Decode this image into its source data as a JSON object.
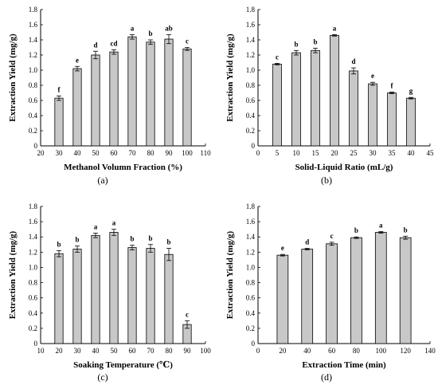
{
  "chart_data": [
    {
      "type": "bar",
      "panel_label": "(a)",
      "xlabel": "Methanol Volumn Fraction (%)",
      "ylabel": "Extraction Yield (mg/g)",
      "xlim": [
        20,
        110
      ],
      "ylim": [
        0,
        1.8
      ],
      "x_ticks": [
        20,
        30,
        40,
        50,
        60,
        70,
        80,
        90,
        100,
        110
      ],
      "y_ticks": [
        "0",
        "0.2",
        "0.4",
        "0.6",
        "0.8",
        "1.0",
        "1.2",
        "1.4",
        "1.6",
        "1.8"
      ],
      "x": [
        30,
        40,
        50,
        60,
        70,
        80,
        90,
        100
      ],
      "values": [
        0.63,
        1.02,
        1.2,
        1.24,
        1.44,
        1.37,
        1.41,
        1.28
      ],
      "errors": [
        0.03,
        0.03,
        0.05,
        0.03,
        0.03,
        0.03,
        0.06,
        0.02
      ],
      "labels": [
        "f",
        "e",
        "d",
        "cd",
        "a",
        "b",
        "ab",
        "c"
      ]
    },
    {
      "type": "bar",
      "panel_label": "(b)",
      "xlabel": "Solid-Liquid Ratio (mL/g)",
      "ylabel": "Extraction Yield (mg/g)",
      "xlim": [
        0,
        45
      ],
      "ylim": [
        0,
        1.8
      ],
      "x_ticks": [
        0,
        5,
        10,
        15,
        20,
        25,
        30,
        35,
        40,
        45
      ],
      "y_ticks": [
        "0",
        "0.2",
        "0.4",
        "0.6",
        "0.8",
        "1.0",
        "1.2",
        "1.4",
        "1.6",
        "1.8"
      ],
      "x": [
        5,
        10,
        15,
        20,
        25,
        30,
        35,
        40
      ],
      "values": [
        1.08,
        1.23,
        1.26,
        1.46,
        0.99,
        0.82,
        0.7,
        0.63
      ],
      "errors": [
        0.01,
        0.03,
        0.03,
        0.01,
        0.04,
        0.02,
        0.01,
        0.01
      ],
      "labels": [
        "c",
        "b",
        "b",
        "a",
        "d",
        "e",
        "f",
        "g"
      ]
    },
    {
      "type": "bar",
      "panel_label": "(c)",
      "xlabel": "Soaking Temperature (℃)",
      "ylabel": "Extraction Yield (mg/g)",
      "xlim": [
        10,
        100
      ],
      "ylim": [
        0,
        1.8
      ],
      "x_ticks": [
        10,
        20,
        30,
        40,
        50,
        60,
        70,
        80,
        90,
        100
      ],
      "y_ticks": [
        "0",
        "0.2",
        "0.4",
        "0.6",
        "0.8",
        "1.0",
        "1.2",
        "1.4",
        "1.6",
        "1.8"
      ],
      "x": [
        20,
        30,
        40,
        50,
        60,
        70,
        80,
        90
      ],
      "values": [
        1.18,
        1.24,
        1.42,
        1.46,
        1.26,
        1.25,
        1.17,
        0.25
      ],
      "errors": [
        0.04,
        0.04,
        0.03,
        0.04,
        0.03,
        0.05,
        0.08,
        0.05
      ],
      "labels": [
        "b",
        "b",
        "a",
        "a",
        "b",
        "b",
        "b",
        "c"
      ]
    },
    {
      "type": "bar",
      "panel_label": "(d)",
      "xlabel": "Extraction Time (min)",
      "ylabel": "Extraction Yield (mg/g)",
      "xlim": [
        0,
        140
      ],
      "ylim": [
        0,
        1.8
      ],
      "x_ticks": [
        0,
        20,
        40,
        60,
        80,
        100,
        120,
        140
      ],
      "y_ticks": [
        "0",
        "0.2",
        "0.4",
        "0.6",
        "0.8",
        "1.0",
        "1.2",
        "1.4",
        "1.6",
        "1.8"
      ],
      "x": [
        20,
        40,
        60,
        80,
        100,
        120
      ],
      "values": [
        1.16,
        1.24,
        1.31,
        1.39,
        1.46,
        1.39
      ],
      "errors": [
        0.01,
        0.01,
        0.02,
        0.01,
        0.01,
        0.02
      ],
      "labels": [
        "e",
        "d",
        "c",
        "b",
        "a",
        "b"
      ]
    }
  ]
}
